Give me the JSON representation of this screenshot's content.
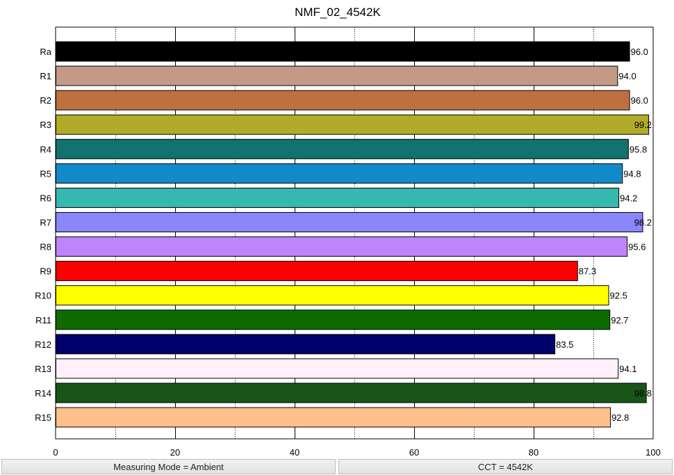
{
  "chart_data": {
    "type": "bar",
    "orientation": "horizontal",
    "title": "NMF_02_4542K",
    "xlabel": "",
    "ylabel": "",
    "xlim": [
      0,
      100
    ],
    "x_ticks": [
      0,
      20,
      40,
      60,
      80,
      100
    ],
    "grid": "vertical dotted every 10, solid every 20",
    "categories": [
      "Ra",
      "R1",
      "R2",
      "R3",
      "R4",
      "R5",
      "R6",
      "R7",
      "R8",
      "R9",
      "R10",
      "R11",
      "R12",
      "R13",
      "R14",
      "R15"
    ],
    "values": [
      96.0,
      94.0,
      96.0,
      99.2,
      95.8,
      94.8,
      94.2,
      98.2,
      95.6,
      87.3,
      92.5,
      92.7,
      83.5,
      94.1,
      98.8,
      92.8
    ],
    "value_labels": [
      "96.0",
      "94.0",
      "96.0",
      "99.2",
      "95.8",
      "94.8",
      "94.2",
      "98.2",
      "95.6",
      "87.3",
      "92.5",
      "92.7",
      "83.5",
      "94.1",
      "98.8",
      "92.8"
    ],
    "colors": [
      "#000000",
      "#c49a86",
      "#be7041",
      "#b1ab2a",
      "#117270",
      "#128ac8",
      "#36b8b0",
      "#8a87fb",
      "#bf83fb",
      "#ff0000",
      "#ffff00",
      "#0d6b00",
      "#01006a",
      "#fff0fb",
      "#1a5518",
      "#ffc08b"
    ]
  },
  "status_bar": {
    "measuring_mode": "Measuring Mode = Ambient",
    "cct": "CCT = 4542K"
  }
}
